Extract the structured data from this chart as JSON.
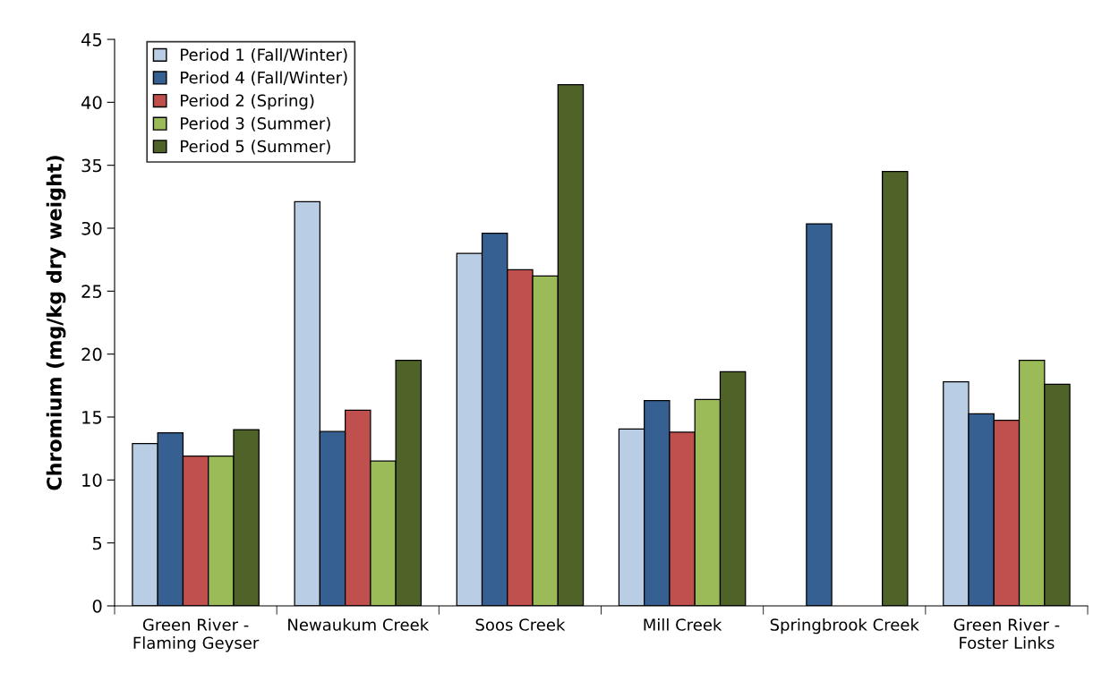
{
  "chart_data": {
    "type": "bar",
    "ylabel": "Chromium (mg/kg dry weight)",
    "categories": [
      "Green River - Flaming Geyser",
      "Newaukum Creek",
      "Soos Creek",
      "Mill Creek",
      "Springbrook Creek",
      "Green River - Foster Links"
    ],
    "series": [
      {
        "name": "Period 1 (Fall/Winter)",
        "color": "#b9cde5",
        "values": [
          12.9,
          32.1,
          28.0,
          14.05,
          null,
          17.8
        ]
      },
      {
        "name": "Period 4 (Fall/Winter)",
        "color": "#376092",
        "values": [
          13.75,
          13.85,
          29.6,
          16.3,
          30.35,
          15.25
        ]
      },
      {
        "name": "Period 2 (Spring)",
        "color": "#c0504d",
        "values": [
          11.9,
          15.55,
          26.7,
          13.8,
          null,
          14.75
        ]
      },
      {
        "name": "Period 3 (Summer)",
        "color": "#9bbb59",
        "values": [
          11.9,
          11.5,
          26.2,
          16.4,
          null,
          19.5
        ]
      },
      {
        "name": "Period 5 (Summer)",
        "color": "#4f6228",
        "values": [
          14.0,
          19.5,
          41.4,
          18.6,
          34.5,
          17.6
        ]
      }
    ],
    "ylim": [
      0,
      45
    ],
    "yticks": [
      0,
      5,
      10,
      15,
      20,
      25,
      30,
      35,
      40,
      45
    ],
    "grid": false,
    "legend": "top left"
  }
}
